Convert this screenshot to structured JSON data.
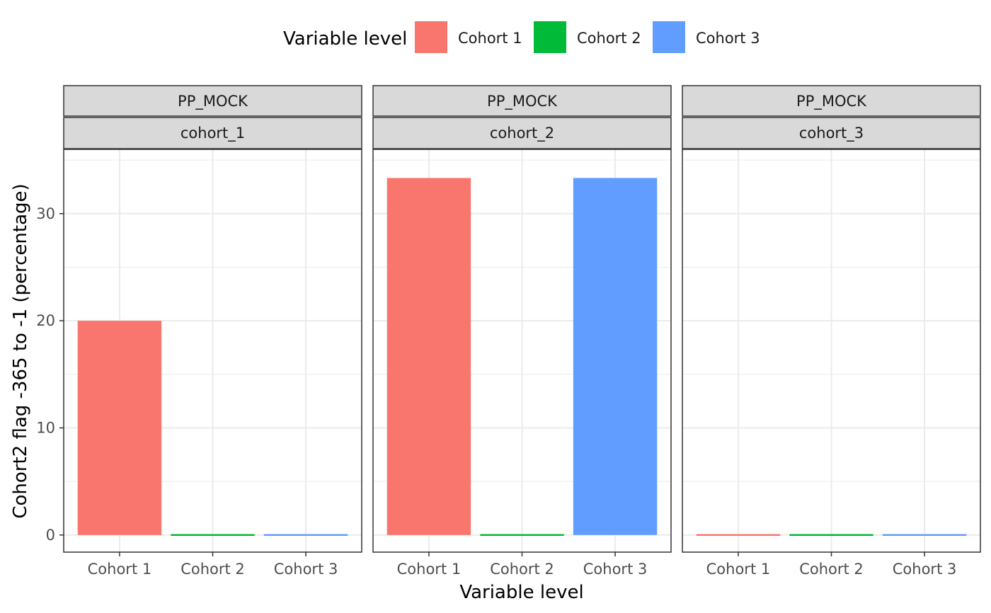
{
  "chart_data": {
    "type": "bar",
    "legend": {
      "title": "Variable level",
      "placement": "top",
      "entries": [
        {
          "label": "Cohort 1",
          "color": "#F8766D"
        },
        {
          "label": "Cohort 2",
          "color": "#00BA38"
        },
        {
          "label": "Cohort 3",
          "color": "#619CFF"
        }
      ]
    },
    "xlabel": "Variable level",
    "ylabel": "Cohort2 flag -365 to -1 (percentage)",
    "categories": [
      "Cohort 1",
      "Cohort 2",
      "Cohort 3"
    ],
    "ylim": [
      -1.6,
      36
    ],
    "yticks": [
      0,
      10,
      20,
      30
    ],
    "grid": true,
    "facets": [
      {
        "strip_top": "PP_MOCK",
        "strip_bottom": "cohort_1",
        "values": [
          20.0,
          0,
          0
        ]
      },
      {
        "strip_top": "PP_MOCK",
        "strip_bottom": "cohort_2",
        "values": [
          33.33,
          0,
          33.33
        ]
      },
      {
        "strip_top": "PP_MOCK",
        "strip_bottom": "cohort_3",
        "values": [
          0,
          0,
          0
        ]
      }
    ]
  }
}
